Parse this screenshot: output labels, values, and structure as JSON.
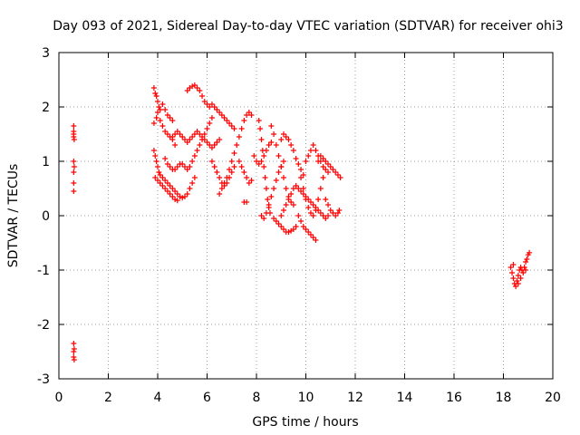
{
  "chart_data": {
    "type": "scatter",
    "title": "Day 093 of 2021, Sidereal Day-to-day VTEC variation (SDTVAR) for receiver ohi3",
    "xlabel": "GPS time / hours",
    "ylabel": "SDTVAR / TECUs",
    "xlim": [
      0,
      20
    ],
    "ylim": [
      -3,
      3
    ],
    "xticks": [
      0,
      2,
      4,
      6,
      8,
      10,
      12,
      14,
      16,
      18,
      20
    ],
    "yticks": [
      -3,
      -2,
      -1,
      0,
      1,
      2,
      3
    ],
    "xtick_labels": [
      "0",
      "2",
      "4",
      "6",
      "8",
      "10",
      "12",
      "14",
      "16",
      "18",
      "20"
    ],
    "ytick_labels": [
      "-3",
      "-2",
      "-1",
      "0",
      "1",
      "2",
      "3"
    ],
    "grid": true,
    "marker": "plus",
    "color": "#ff0000",
    "series": [
      {
        "name": "SDTVAR",
        "points": [
          [
            0.6,
            1.65
          ],
          [
            0.6,
            1.55
          ],
          [
            0.6,
            1.5
          ],
          [
            0.6,
            1.45
          ],
          [
            0.62,
            1.4
          ],
          [
            0.6,
            1.0
          ],
          [
            0.62,
            0.9
          ],
          [
            0.6,
            0.8
          ],
          [
            0.6,
            0.6
          ],
          [
            0.6,
            0.45
          ],
          [
            0.6,
            -2.35
          ],
          [
            0.62,
            -2.45
          ],
          [
            0.6,
            -2.5
          ],
          [
            0.6,
            -2.6
          ],
          [
            0.62,
            -2.65
          ],
          [
            3.85,
            2.35
          ],
          [
            3.9,
            2.25
          ],
          [
            3.95,
            2.2
          ],
          [
            4.0,
            2.1
          ],
          [
            4.05,
            2.0
          ],
          [
            4.1,
            1.95
          ],
          [
            4.2,
            2.05
          ],
          [
            4.3,
            1.95
          ],
          [
            4.4,
            1.85
          ],
          [
            4.5,
            1.8
          ],
          [
            4.6,
            1.75
          ],
          [
            3.85,
            1.7
          ],
          [
            3.95,
            1.8
          ],
          [
            4.0,
            1.9
          ],
          [
            4.1,
            1.75
          ],
          [
            4.2,
            1.65
          ],
          [
            4.3,
            1.55
          ],
          [
            4.4,
            1.5
          ],
          [
            4.5,
            1.45
          ],
          [
            4.6,
            1.4
          ],
          [
            4.7,
            1.3
          ],
          [
            3.85,
            1.2
          ],
          [
            3.9,
            1.1
          ],
          [
            3.95,
            1.0
          ],
          [
            4.0,
            0.9
          ],
          [
            4.05,
            0.8
          ],
          [
            4.1,
            0.75
          ],
          [
            4.2,
            0.7
          ],
          [
            4.3,
            0.65
          ],
          [
            4.4,
            0.6
          ],
          [
            4.5,
            0.55
          ],
          [
            4.6,
            0.5
          ],
          [
            4.7,
            0.45
          ],
          [
            4.8,
            0.4
          ],
          [
            4.9,
            0.35
          ],
          [
            5.0,
            0.33
          ],
          [
            5.1,
            0.35
          ],
          [
            5.2,
            0.4
          ],
          [
            5.3,
            0.5
          ],
          [
            5.4,
            0.6
          ],
          [
            5.5,
            0.7
          ],
          [
            3.9,
            0.7
          ],
          [
            4.0,
            0.65
          ],
          [
            4.1,
            0.6
          ],
          [
            4.2,
            0.55
          ],
          [
            4.3,
            0.5
          ],
          [
            4.4,
            0.45
          ],
          [
            4.5,
            0.4
          ],
          [
            4.6,
            0.35
          ],
          [
            4.7,
            0.3
          ],
          [
            4.8,
            0.28
          ],
          [
            4.6,
            1.45
          ],
          [
            4.7,
            1.5
          ],
          [
            4.8,
            1.55
          ],
          [
            4.9,
            1.5
          ],
          [
            5.0,
            1.45
          ],
          [
            5.1,
            1.4
          ],
          [
            5.2,
            1.35
          ],
          [
            5.3,
            1.4
          ],
          [
            5.4,
            1.45
          ],
          [
            5.5,
            1.5
          ],
          [
            5.6,
            1.55
          ],
          [
            5.7,
            1.5
          ],
          [
            5.8,
            1.45
          ],
          [
            5.9,
            1.4
          ],
          [
            6.0,
            1.35
          ],
          [
            6.1,
            1.3
          ],
          [
            6.2,
            1.25
          ],
          [
            6.3,
            1.3
          ],
          [
            6.4,
            1.35
          ],
          [
            6.5,
            1.4
          ],
          [
            4.3,
            1.05
          ],
          [
            4.4,
            0.95
          ],
          [
            4.5,
            0.9
          ],
          [
            4.6,
            0.85
          ],
          [
            4.7,
            0.85
          ],
          [
            4.8,
            0.9
          ],
          [
            4.9,
            0.95
          ],
          [
            5.0,
            0.95
          ],
          [
            5.1,
            0.9
          ],
          [
            5.2,
            0.85
          ],
          [
            5.3,
            0.9
          ],
          [
            5.4,
            1.0
          ],
          [
            5.5,
            1.1
          ],
          [
            5.6,
            1.2
          ],
          [
            5.7,
            1.3
          ],
          [
            5.8,
            1.4
          ],
          [
            5.9,
            1.5
          ],
          [
            6.0,
            1.6
          ],
          [
            6.1,
            1.7
          ],
          [
            6.2,
            1.8
          ],
          [
            5.2,
            2.3
          ],
          [
            5.3,
            2.35
          ],
          [
            5.4,
            2.38
          ],
          [
            5.5,
            2.4
          ],
          [
            5.6,
            2.35
          ],
          [
            5.7,
            2.3
          ],
          [
            5.8,
            2.2
          ],
          [
            5.9,
            2.1
          ],
          [
            6.0,
            2.05
          ],
          [
            6.1,
            2.0
          ],
          [
            6.2,
            2.05
          ],
          [
            6.3,
            2.0
          ],
          [
            6.4,
            1.95
          ],
          [
            6.5,
            1.9
          ],
          [
            6.6,
            1.85
          ],
          [
            6.7,
            1.8
          ],
          [
            6.8,
            1.75
          ],
          [
            6.9,
            1.7
          ],
          [
            7.0,
            1.65
          ],
          [
            7.1,
            1.6
          ],
          [
            6.2,
            1.0
          ],
          [
            6.3,
            0.9
          ],
          [
            6.4,
            0.8
          ],
          [
            6.5,
            0.7
          ],
          [
            6.6,
            0.6
          ],
          [
            6.7,
            0.55
          ],
          [
            6.8,
            0.6
          ],
          [
            6.9,
            0.7
          ],
          [
            7.0,
            0.8
          ],
          [
            7.1,
            0.9
          ],
          [
            6.5,
            0.4
          ],
          [
            6.6,
            0.5
          ],
          [
            6.7,
            0.6
          ],
          [
            6.8,
            0.7
          ],
          [
            6.9,
            0.85
          ],
          [
            7.0,
            1.0
          ],
          [
            7.1,
            1.15
          ],
          [
            7.2,
            1.3
          ],
          [
            7.3,
            1.45
          ],
          [
            7.4,
            1.6
          ],
          [
            7.5,
            1.75
          ],
          [
            7.6,
            1.85
          ],
          [
            7.7,
            1.9
          ],
          [
            7.8,
            1.85
          ],
          [
            7.3,
            1.0
          ],
          [
            7.4,
            0.9
          ],
          [
            7.5,
            0.8
          ],
          [
            7.6,
            0.7
          ],
          [
            7.7,
            0.6
          ],
          [
            7.8,
            0.65
          ],
          [
            7.5,
            0.25
          ],
          [
            7.6,
            0.25
          ],
          [
            7.9,
            1.1
          ],
          [
            8.0,
            1.0
          ],
          [
            8.1,
            0.95
          ],
          [
            8.2,
            1.0
          ],
          [
            8.3,
            1.1
          ],
          [
            8.4,
            1.2
          ],
          [
            8.5,
            1.3
          ],
          [
            8.6,
            1.35
          ],
          [
            8.1,
            1.75
          ],
          [
            8.15,
            1.6
          ],
          [
            8.2,
            1.4
          ],
          [
            8.25,
            1.2
          ],
          [
            8.3,
            0.9
          ],
          [
            8.35,
            0.7
          ],
          [
            8.4,
            0.5
          ],
          [
            8.45,
            0.3
          ],
          [
            8.5,
            0.15
          ],
          [
            8.55,
            0.05
          ],
          [
            8.2,
            0.0
          ],
          [
            8.3,
            -0.05
          ],
          [
            8.4,
            0.05
          ],
          [
            8.5,
            0.2
          ],
          [
            8.6,
            0.35
          ],
          [
            8.7,
            0.5
          ],
          [
            8.8,
            0.65
          ],
          [
            8.9,
            0.8
          ],
          [
            9.0,
            0.9
          ],
          [
            9.1,
            1.0
          ],
          [
            8.6,
            1.65
          ],
          [
            8.7,
            1.5
          ],
          [
            8.8,
            1.3
          ],
          [
            8.9,
            1.1
          ],
          [
            9.0,
            0.9
          ],
          [
            9.1,
            0.7
          ],
          [
            9.2,
            0.5
          ],
          [
            9.3,
            0.35
          ],
          [
            9.4,
            0.25
          ],
          [
            9.5,
            0.2
          ],
          [
            9.0,
            1.4
          ],
          [
            9.1,
            1.5
          ],
          [
            9.2,
            1.45
          ],
          [
            9.3,
            1.4
          ],
          [
            9.4,
            1.3
          ],
          [
            9.5,
            1.2
          ],
          [
            9.6,
            1.05
          ],
          [
            9.7,
            0.95
          ],
          [
            9.8,
            0.85
          ],
          [
            9.9,
            0.75
          ],
          [
            8.7,
            -0.05
          ],
          [
            8.8,
            -0.1
          ],
          [
            8.9,
            -0.15
          ],
          [
            9.0,
            -0.2
          ],
          [
            9.1,
            -0.25
          ],
          [
            9.2,
            -0.3
          ],
          [
            9.3,
            -0.3
          ],
          [
            9.4,
            -0.28
          ],
          [
            9.5,
            -0.25
          ],
          [
            9.6,
            -0.2
          ],
          [
            9.0,
            0.0
          ],
          [
            9.1,
            0.1
          ],
          [
            9.2,
            0.2
          ],
          [
            9.3,
            0.3
          ],
          [
            9.4,
            0.4
          ],
          [
            9.5,
            0.5
          ],
          [
            9.6,
            0.55
          ],
          [
            9.7,
            0.5
          ],
          [
            9.8,
            0.45
          ],
          [
            9.9,
            0.4
          ],
          [
            10.0,
            0.35
          ],
          [
            10.1,
            0.3
          ],
          [
            10.2,
            0.25
          ],
          [
            10.3,
            0.2
          ],
          [
            10.4,
            0.15
          ],
          [
            10.5,
            0.1
          ],
          [
            10.6,
            0.05
          ],
          [
            10.7,
            0.0
          ],
          [
            10.8,
            -0.05
          ],
          [
            10.9,
            0.0
          ],
          [
            9.7,
            0.0
          ],
          [
            9.8,
            -0.1
          ],
          [
            9.9,
            -0.2
          ],
          [
            10.0,
            -0.25
          ],
          [
            10.1,
            -0.3
          ],
          [
            10.2,
            -0.35
          ],
          [
            10.3,
            -0.4
          ],
          [
            10.4,
            -0.45
          ],
          [
            9.8,
            0.7
          ],
          [
            9.9,
            0.5
          ],
          [
            10.0,
            0.3
          ],
          [
            10.1,
            0.15
          ],
          [
            10.2,
            0.05
          ],
          [
            10.3,
            0.0
          ],
          [
            10.4,
            0.1
          ],
          [
            10.5,
            0.3
          ],
          [
            10.6,
            0.5
          ],
          [
            10.7,
            0.7
          ],
          [
            10.0,
            1.0
          ],
          [
            10.1,
            1.1
          ],
          [
            10.2,
            1.2
          ],
          [
            10.3,
            1.3
          ],
          [
            10.4,
            1.2
          ],
          [
            10.5,
            1.1
          ],
          [
            10.6,
            1.0
          ],
          [
            10.7,
            0.9
          ],
          [
            10.8,
            0.85
          ],
          [
            10.9,
            0.8
          ],
          [
            10.5,
            1.0
          ],
          [
            10.6,
            1.1
          ],
          [
            10.7,
            1.05
          ],
          [
            10.8,
            1.0
          ],
          [
            10.9,
            0.95
          ],
          [
            11.0,
            0.9
          ],
          [
            11.1,
            0.85
          ],
          [
            11.2,
            0.8
          ],
          [
            11.3,
            0.75
          ],
          [
            11.4,
            0.7
          ],
          [
            10.8,
            0.3
          ],
          [
            10.9,
            0.2
          ],
          [
            11.0,
            0.1
          ],
          [
            11.1,
            0.05
          ],
          [
            11.2,
            0.0
          ],
          [
            11.3,
            0.05
          ],
          [
            11.35,
            0.1
          ],
          [
            18.3,
            -0.95
          ],
          [
            18.35,
            -1.05
          ],
          [
            18.4,
            -1.15
          ],
          [
            18.45,
            -1.25
          ],
          [
            18.5,
            -1.3
          ],
          [
            18.55,
            -1.2
          ],
          [
            18.6,
            -1.1
          ],
          [
            18.65,
            -1.0
          ],
          [
            18.7,
            -0.95
          ],
          [
            18.75,
            -1.0
          ],
          [
            18.8,
            -1.05
          ],
          [
            18.85,
            -0.95
          ],
          [
            18.9,
            -0.85
          ],
          [
            18.95,
            -0.8
          ],
          [
            19.0,
            -0.72
          ],
          [
            19.05,
            -0.68
          ],
          [
            18.4,
            -0.9
          ],
          [
            18.6,
            -1.25
          ],
          [
            18.7,
            -1.15
          ],
          [
            18.9,
            -1.0
          ]
        ]
      }
    ]
  }
}
